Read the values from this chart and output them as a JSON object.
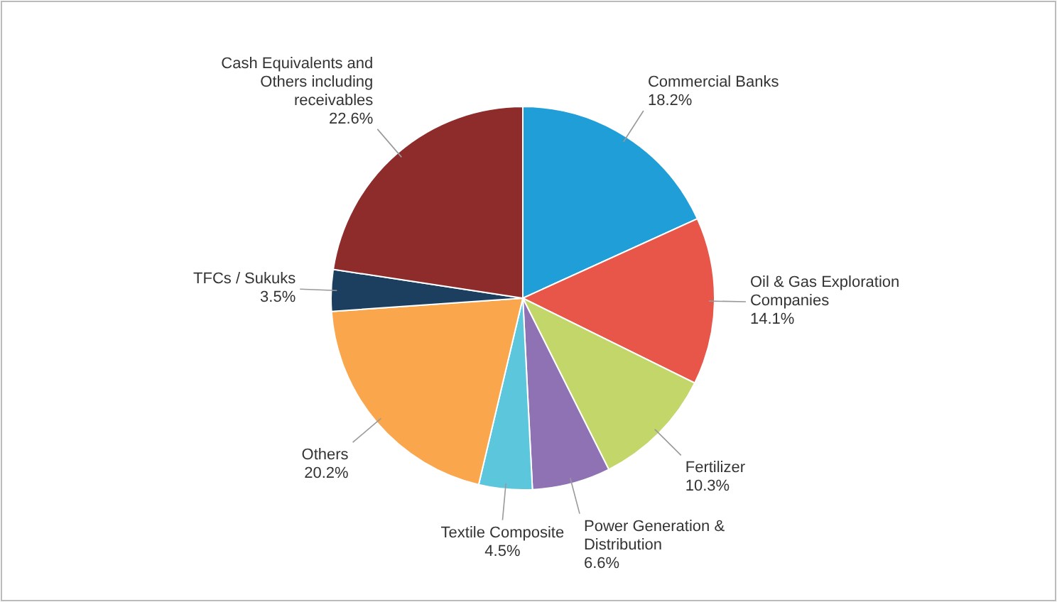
{
  "chart_data": {
    "type": "pie",
    "categories": [
      "Commercial Banks",
      "Oil & Gas Exploration Companies",
      "Fertilizer",
      "Power Generation & Distribution",
      "Textile Composite",
      "Others",
      "TFCs / Sukuks",
      "Cash Equivalents and Others including receivables"
    ],
    "values": [
      18.2,
      14.1,
      10.3,
      6.6,
      4.5,
      20.2,
      3.5,
      22.6
    ],
    "colors": [
      "#1f9ed8",
      "#e8564a",
      "#c3d66a",
      "#8e72b4",
      "#5cc6dc",
      "#f9a64d",
      "#1c3f5f",
      "#8e2c2c"
    ],
    "value_labels": [
      "18.2%",
      "14.1%",
      "10.3%",
      "6.6%",
      "4.5%",
      "20.2%",
      "3.5%",
      "22.6%"
    ]
  }
}
